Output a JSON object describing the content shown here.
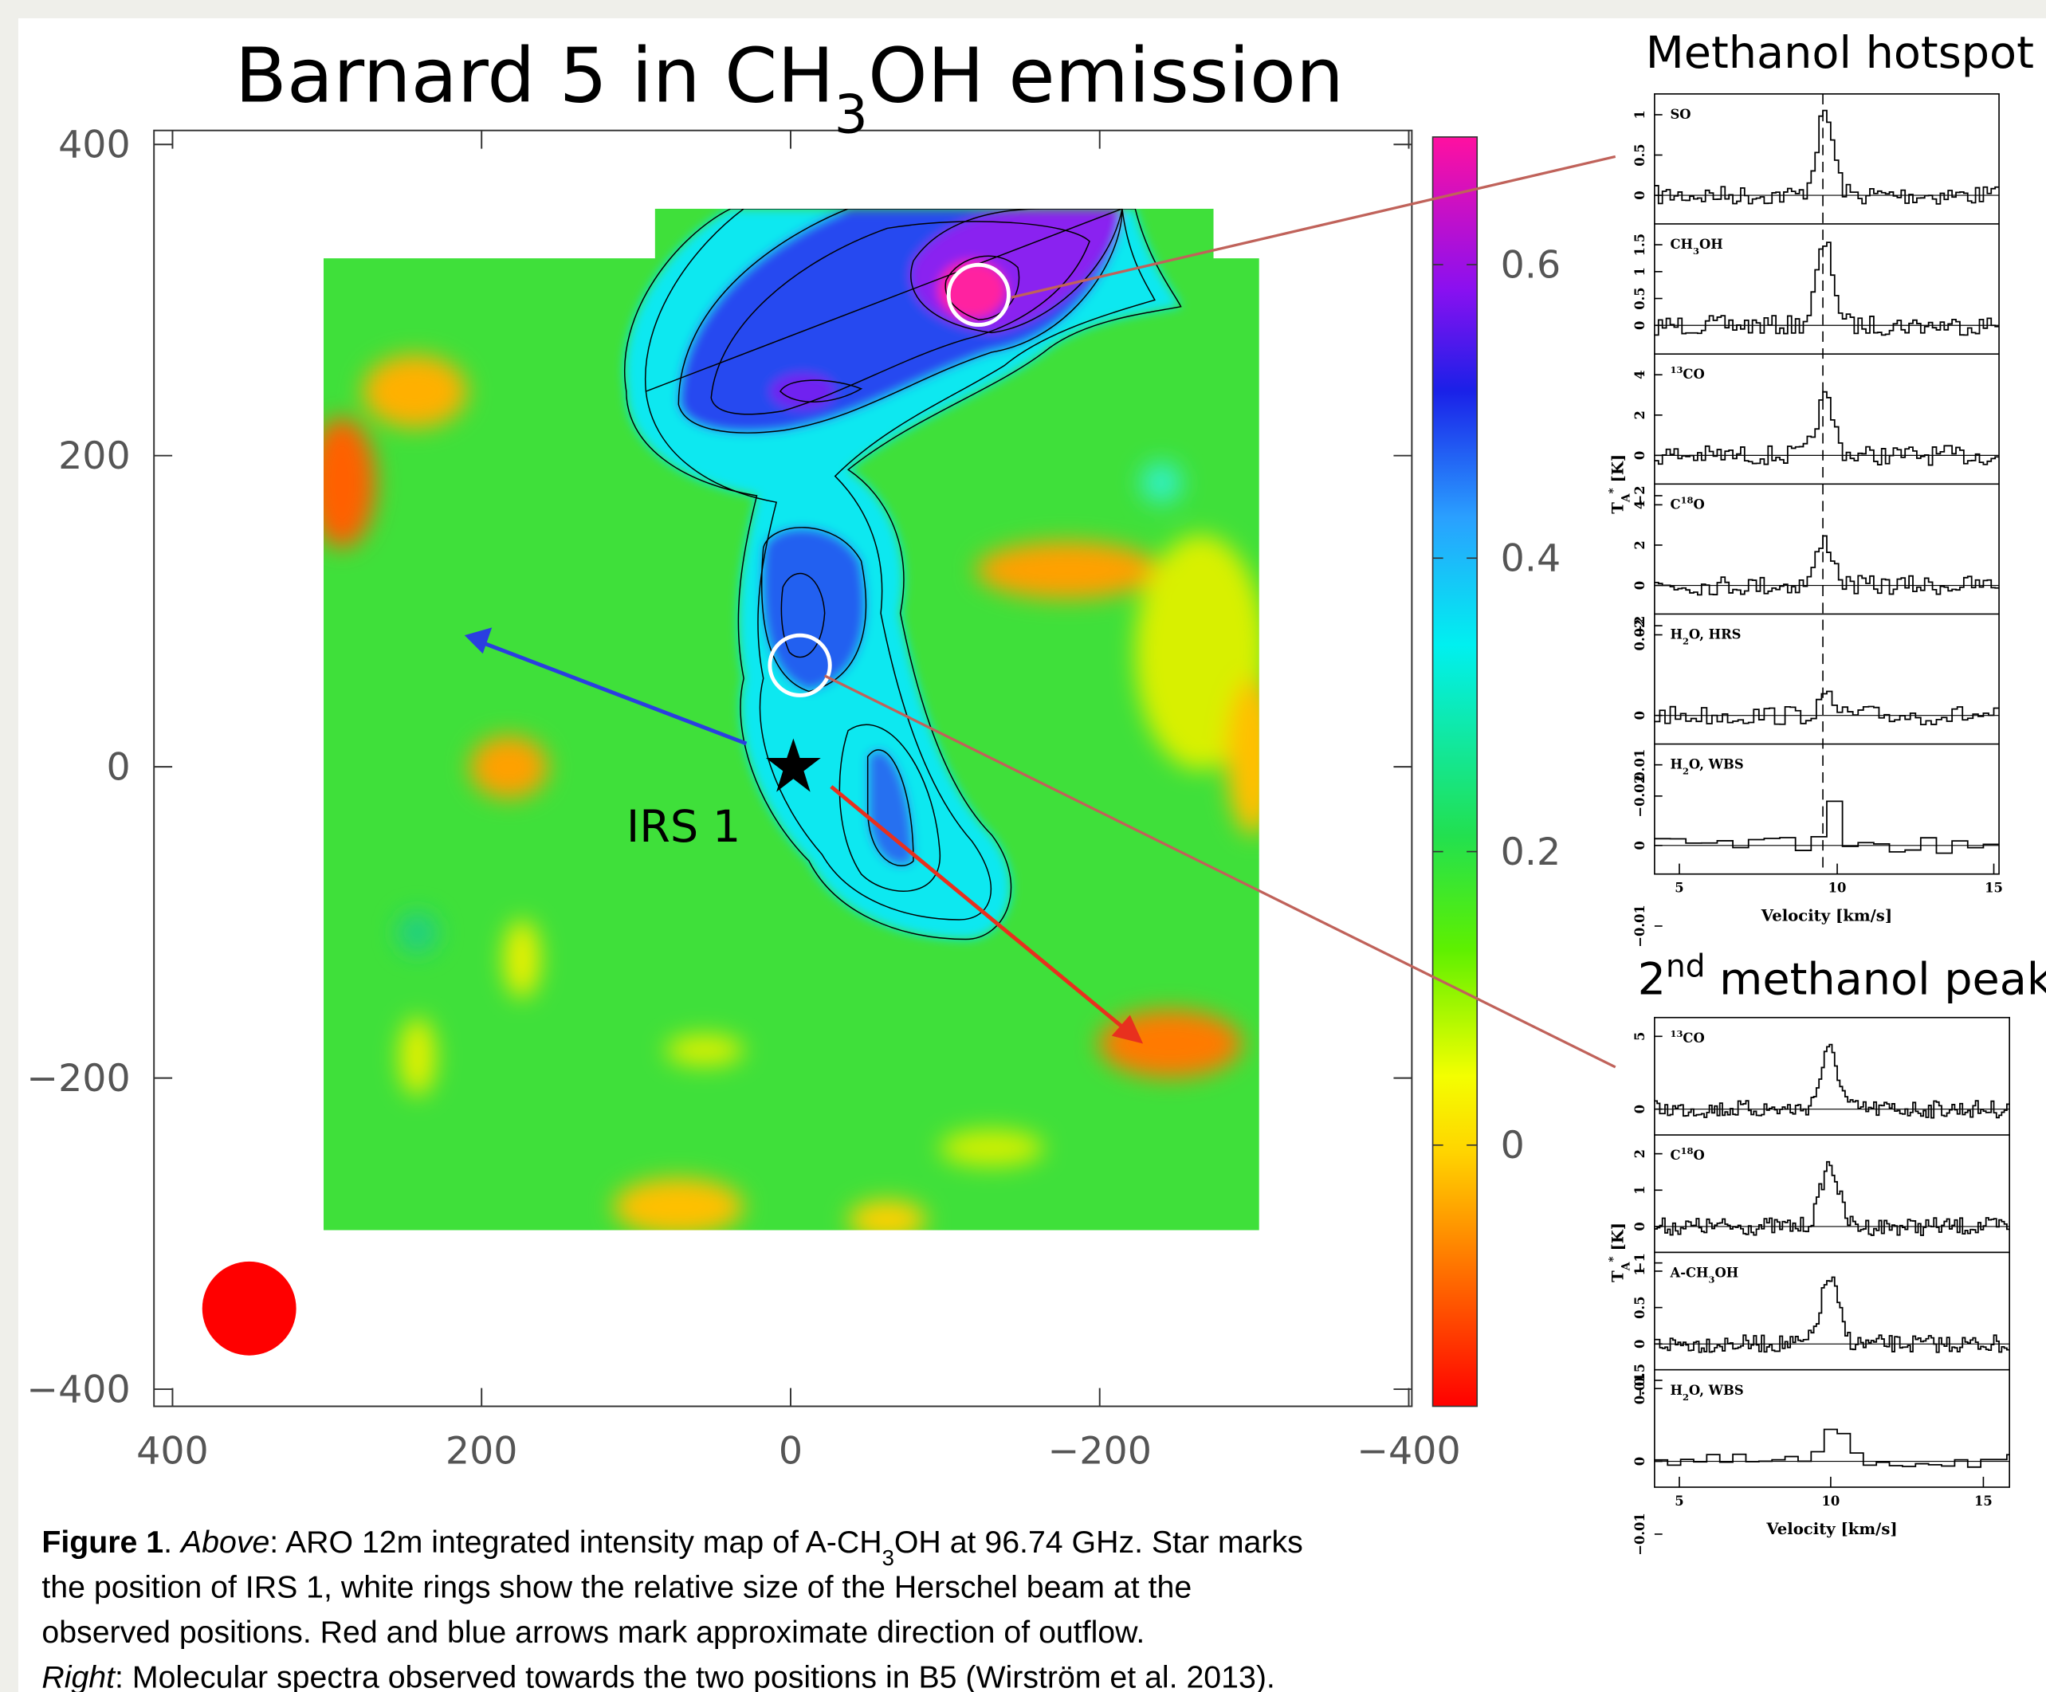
{
  "title_parts": [
    {
      "text": "Barnard 5 in CH"
    },
    {
      "text": "3",
      "style": "sub"
    },
    {
      "text": "OH emission"
    }
  ],
  "map": {
    "xlim": [
      412,
      -402
    ],
    "ylim": [
      -411,
      409
    ],
    "xticks": [
      400,
      200,
      0,
      {
        "value": -200,
        "label": "−200"
      },
      {
        "value": -400,
        "label": "−400"
      }
    ],
    "yticks": [
      400,
      200,
      0,
      {
        "value": -200,
        "label": "−200"
      },
      {
        "value": -400,
        "label": "−400"
      }
    ],
    "annotation": "IRS 1",
    "colorbar": {
      "lim": [
        -0.178,
        0.687
      ],
      "ticks": [
        0,
        0.2,
        0.4,
        0.6
      ]
    }
  },
  "hotspot": {
    "title_parts": [
      {
        "text": "Methanol hotspot"
      }
    ],
    "panels": [
      {
        "label": [
          {
            "text": "SO"
          }
        ],
        "yticks": [
          "0",
          "0.5",
          "1"
        ]
      },
      {
        "label": [
          {
            "text": "CH"
          },
          {
            "text": "3",
            "style": "sub"
          },
          {
            "text": "OH"
          }
        ],
        "yticks": [
          "0",
          "0.5",
          "1",
          "1.5"
        ]
      },
      {
        "label": [
          {
            "text": "13",
            "style": "sup"
          },
          {
            "text": "CO"
          }
        ],
        "yticks": [
          "−2",
          "0",
          "2",
          "4"
        ]
      },
      {
        "label": [
          {
            "text": "C"
          },
          {
            "text": "18",
            "style": "sup"
          },
          {
            "text": "O"
          }
        ],
        "yticks": [
          "−2",
          "0",
          "2",
          "4"
        ]
      },
      {
        "label": [
          {
            "text": "H"
          },
          {
            "text": "2",
            "style": "sub"
          },
          {
            "text": "O, HRS"
          }
        ],
        "yticks": [
          "−0.02",
          "0",
          "0.02"
        ]
      },
      {
        "label": [
          {
            "text": "H"
          },
          {
            "text": "2",
            "style": "sub"
          },
          {
            "text": "O, WBS"
          }
        ],
        "yticks": [
          "−0.01",
          "0",
          "0.01"
        ]
      }
    ],
    "xticks": [
      "5",
      "10",
      "15"
    ],
    "xlabel": "Velocity [km/s]",
    "ylabel": [
      {
        "text": "T"
      },
      {
        "text": "A",
        "style": "sub"
      },
      {
        "text": "*",
        "style": "sup"
      },
      {
        "text": " [K]"
      }
    ]
  },
  "second_peak": {
    "title_parts": [
      {
        "text": "2"
      },
      {
        "text": "nd",
        "style": "sup"
      },
      {
        "text": " methanol peak"
      }
    ],
    "panels": [
      {
        "label": [
          {
            "text": "13",
            "style": "sup"
          },
          {
            "text": "CO"
          }
        ],
        "yticks": [
          "0",
          "5"
        ]
      },
      {
        "label": [
          {
            "text": "C"
          },
          {
            "text": "18",
            "style": "sup"
          },
          {
            "text": "O"
          }
        ],
        "yticks": [
          "−1",
          "0",
          "1",
          "2"
        ]
      },
      {
        "label": [
          {
            "text": "A-CH"
          },
          {
            "text": "3",
            "style": "sub"
          },
          {
            "text": "OH"
          }
        ],
        "yticks": [
          "−0.5",
          "0",
          "0.5",
          "1"
        ]
      },
      {
        "label": [
          {
            "text": "H"
          },
          {
            "text": "2",
            "style": "sub"
          },
          {
            "text": "O, WBS"
          }
        ],
        "yticks": [
          "−0.01",
          "0",
          "0.01"
        ]
      }
    ],
    "xticks": [
      "5",
      "10",
      "15"
    ],
    "xlabel": "Velocity [km/s]",
    "ylabel": [
      {
        "text": "T"
      },
      {
        "text": "A",
        "style": "sub"
      },
      {
        "text": "*",
        "style": "sup"
      },
      {
        "text": " [K]"
      }
    ]
  },
  "caption": [
    [
      {
        "text": "Figure 1",
        "style": "bold"
      },
      {
        "text": ". "
      },
      {
        "text": "Above",
        "style": "italic"
      },
      {
        "text": ": ARO 12m integrated intensity map of A-CH"
      },
      {
        "text": "3",
        "style": "sub"
      },
      {
        "text": "OH at 96.74 GHz. Star marks"
      }
    ],
    [
      {
        "text": "the position of IRS 1, white rings show the relative size of the Herschel beam at the"
      }
    ],
    [
      {
        "text": "observed positions. Red and blue arrows mark approximate direction of outflow."
      }
    ],
    [
      {
        "text": "Right",
        "style": "italic"
      },
      {
        "text": ": Molecular spectra observed towards the two positions in B5 (Wirström et al. 2013)."
      }
    ]
  ]
}
